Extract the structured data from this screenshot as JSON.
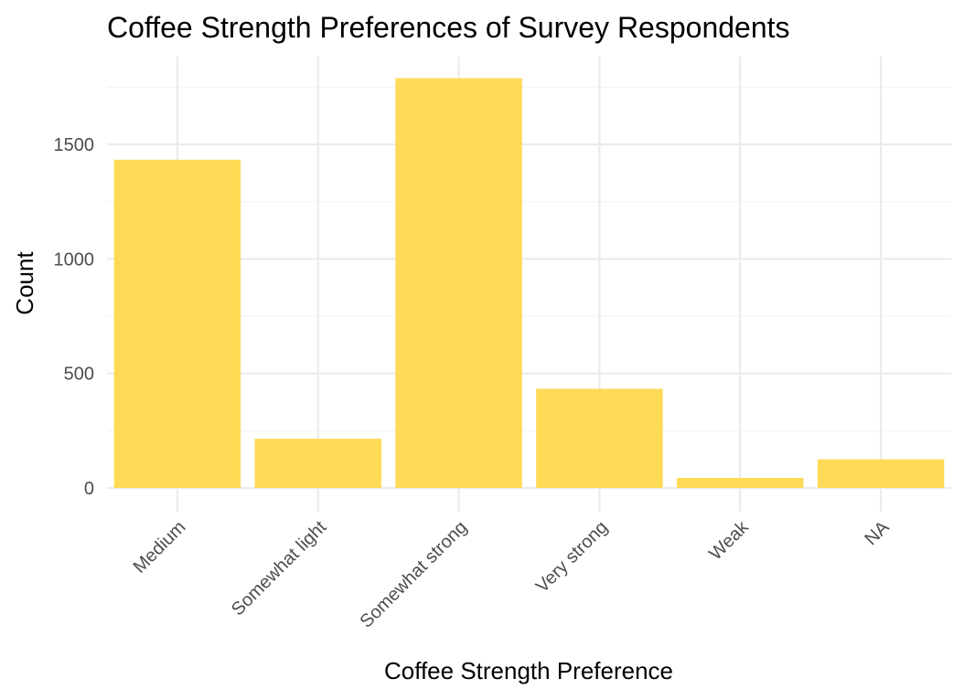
{
  "chart_data": {
    "type": "bar",
    "title": "Coffee Strength Preferences of Survey Respondents",
    "xlabel": "Coffee Strength Preference",
    "ylabel": "Count",
    "categories": [
      "Medium",
      "Somewhat light",
      "Somewhat strong",
      "Very strong",
      "Weak",
      "NA"
    ],
    "values": [
      1433,
      215,
      1789,
      433,
      44,
      125
    ],
    "ylim": [
      0,
      1880
    ],
    "yticks": [
      0,
      500,
      1000,
      1500
    ],
    "ytick_labels": [
      "0",
      "500",
      "1000",
      "1500"
    ],
    "grid": true,
    "legend": "none",
    "bar_color": "#FFDA57"
  }
}
